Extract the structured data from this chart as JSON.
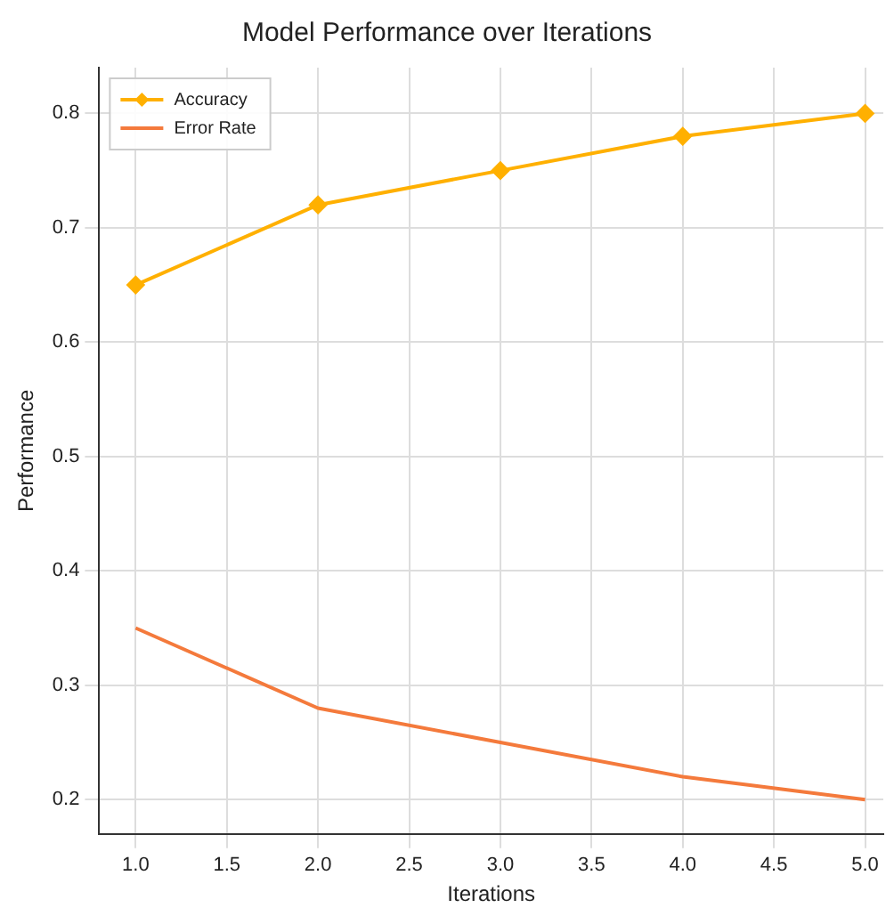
{
  "chart_data": {
    "type": "line",
    "title": "Model Performance over Iterations",
    "xlabel": "Iterations",
    "ylabel": "Performance",
    "x": [
      1,
      2,
      3,
      4,
      5
    ],
    "series": [
      {
        "name": "Accuracy",
        "color": "#ffb000",
        "values": [
          0.65,
          0.72,
          0.75,
          0.78,
          0.8
        ],
        "marker": "diamond"
      },
      {
        "name": "Error Rate",
        "color": "#f47a3c",
        "values": [
          0.35,
          0.28,
          0.25,
          0.22,
          0.2
        ],
        "marker": "none"
      }
    ],
    "xlim": [
      0.8,
      5.1
    ],
    "xticks": [
      {
        "value": 1,
        "label": "1.0"
      },
      1.5,
      {
        "value": 2,
        "label": "2.0"
      },
      2.5,
      {
        "value": 3,
        "label": "3.0"
      },
      3.5,
      {
        "value": 4,
        "label": "4.0"
      },
      4.5,
      {
        "value": 5,
        "label": "5.0"
      }
    ],
    "ylim": [
      0.17,
      0.84
    ],
    "yticks": [
      0.2,
      0.3,
      0.4,
      0.5,
      0.6,
      0.7,
      0.8
    ],
    "grid": true,
    "legend": "top left",
    "line_style": "solid"
  }
}
